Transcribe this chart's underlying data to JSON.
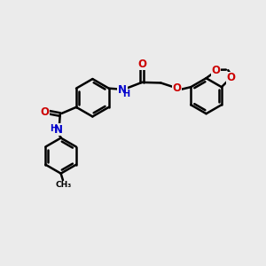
{
  "bg_color": "#ebebeb",
  "bond_color": "#000000",
  "nitrogen_color": "#0000cc",
  "oxygen_color": "#cc0000",
  "lw": 1.8,
  "dbo": 0.055,
  "figsize": [
    3.0,
    3.0
  ],
  "dpi": 100,
  "xlim": [
    0,
    10
  ],
  "ylim": [
    0,
    10
  ]
}
